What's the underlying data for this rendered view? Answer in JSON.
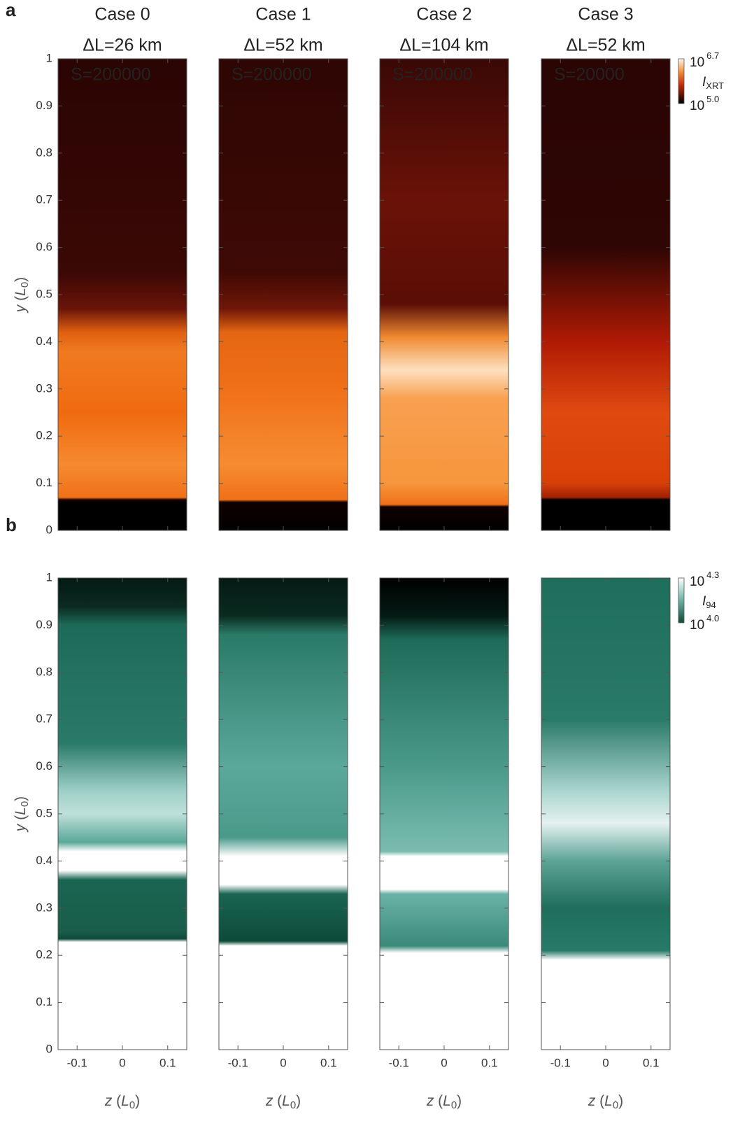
{
  "panels": [
    {
      "label": "a",
      "ylim": [
        0,
        1
      ],
      "yticks": [
        0,
        0.1,
        0.2,
        0.3,
        0.4,
        0.5,
        0.6,
        0.7,
        0.8,
        0.9,
        1
      ],
      "colorbar": {
        "max": {
          "base": "10",
          "exp": "6.7"
        },
        "min": {
          "base": "10",
          "exp": "5.0"
        },
        "quantity": {
          "symbol": "I",
          "sub": "XRT"
        }
      }
    },
    {
      "label": "b",
      "ylim": [
        0,
        1
      ],
      "yticks": [
        0,
        0.1,
        0.2,
        0.3,
        0.4,
        0.5,
        0.6,
        0.7,
        0.8,
        0.9,
        1
      ],
      "colorbar": {
        "max": {
          "base": "10",
          "exp": "4.3"
        },
        "min": {
          "base": "10",
          "exp": "4.0"
        },
        "quantity": {
          "symbol": "I",
          "sub": "94"
        }
      }
    }
  ],
  "cases": [
    {
      "name": "Case 0",
      "color": "#8a3c9e",
      "resolution": "ΔL=26 km",
      "lundquist": "S=200000"
    },
    {
      "name": "Case 1",
      "color": "#1f72bd",
      "resolution": "ΔL=52 km",
      "lundquist": "S=200000"
    },
    {
      "name": "Case 2",
      "color": "#76ab2f",
      "resolution": "ΔL=104 km",
      "lundquist": "S=200000"
    },
    {
      "name": "Case 3",
      "color": "#e8ad22",
      "resolution": "ΔL=52 km",
      "lundquist": "S=20000"
    }
  ],
  "y_label": {
    "var": "y",
    "unit": "L",
    "sub": "0"
  },
  "x_label": {
    "var": "z",
    "unit": "L",
    "sub": "0"
  },
  "xlim": [
    -0.142,
    0.142
  ],
  "xticks": [
    -0.1,
    0,
    0.1
  ]
}
